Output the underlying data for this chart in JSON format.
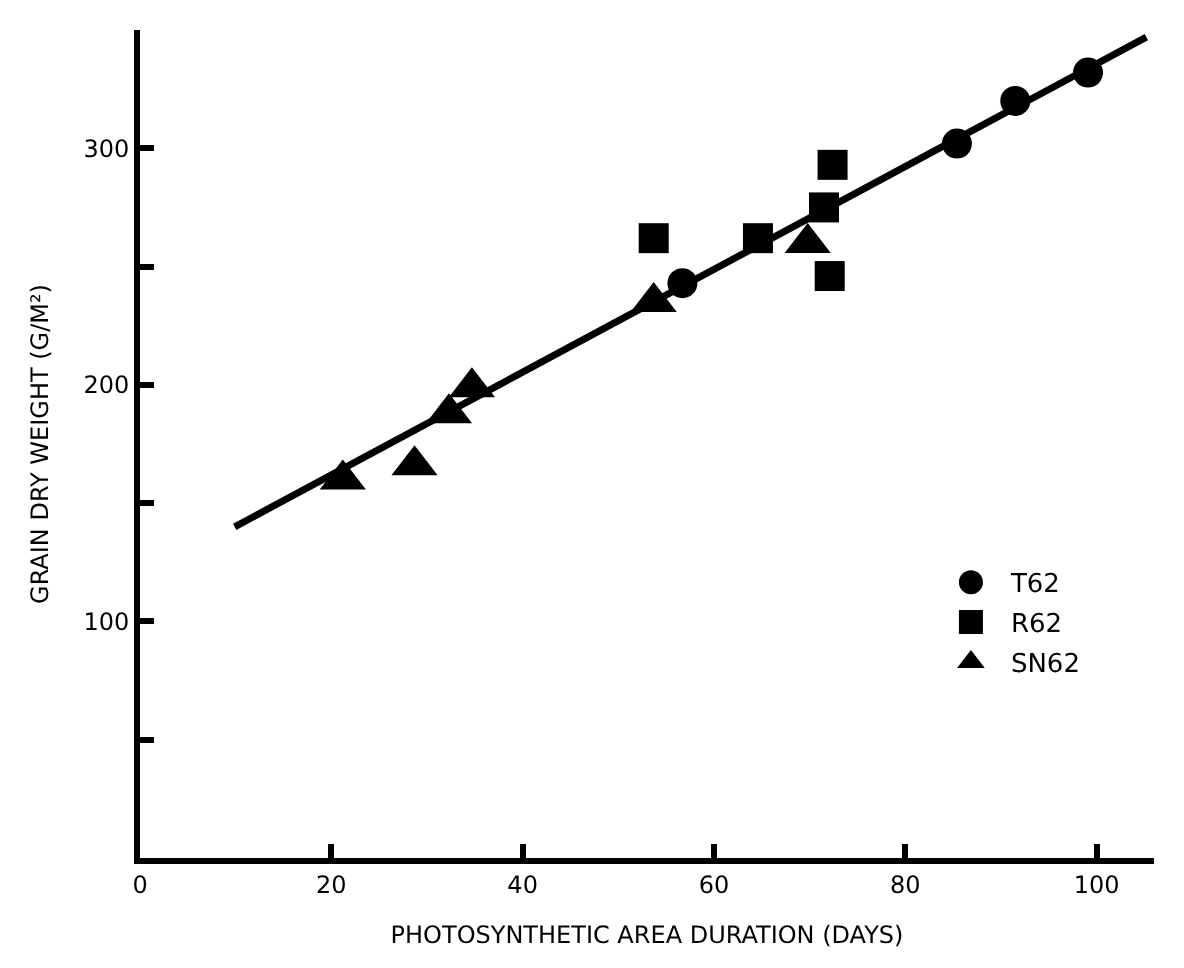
{
  "chart_data": {
    "type": "scatter",
    "xlabel": "PHOTOSYNTHETIC AREA DURATION (DAYS)",
    "ylabel": "GRAIN DRY WEIGHT (G/M²)",
    "xlim": [
      0,
      106
    ],
    "xticks": [
      0,
      20,
      40,
      60,
      80,
      100
    ],
    "ylim": [
      0,
      350
    ],
    "yticks": [
      {
        "value": 50,
        "label": null
      },
      100,
      {
        "value": 150,
        "label": null
      },
      200,
      {
        "value": 250,
        "label": null
      },
      300
    ],
    "legend": "right",
    "series": [
      {
        "name": "T62",
        "color": "#000000",
        "marker": "circle",
        "x": [
          56.7,
          85.4,
          91.5,
          99.1
        ],
        "values": [
          243,
          302,
          320,
          332
        ]
      },
      {
        "name": "R62",
        "color": "#000000",
        "marker": "square",
        "x": [
          53.7,
          64.6,
          71.5,
          72.4,
          72.1
        ],
        "values": [
          262,
          262,
          275,
          293,
          246
        ]
      },
      {
        "name": "SN62",
        "color": "#000000",
        "marker": "triangle",
        "x": [
          21.2,
          28.7,
          32.3,
          34.7,
          53.7,
          69.8
        ],
        "values": [
          160,
          166,
          188,
          199,
          235,
          260
        ]
      },
      {
        "type": "line",
        "color": "#000000",
        "marker": "none",
        "line_style": "solid",
        "x": [
          9.9,
          105.2
        ],
        "values": [
          140,
          347
        ]
      }
    ]
  }
}
